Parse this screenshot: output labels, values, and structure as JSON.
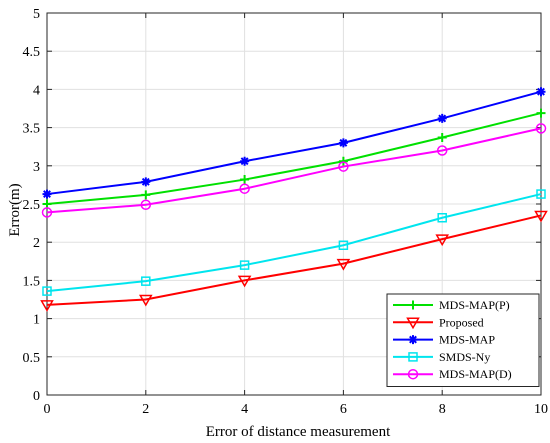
{
  "chart_data": {
    "type": "line",
    "title": "",
    "xlabel": "Error of distance measurement",
    "ylabel": "Error(m)",
    "x": [
      0,
      2,
      4,
      6,
      8,
      10
    ],
    "xlim": [
      0,
      10
    ],
    "ylim": [
      0,
      5
    ],
    "xticks": [
      "0",
      "2",
      "4",
      "6",
      "8",
      "10"
    ],
    "yticks": [
      "0",
      "0.5",
      "1",
      "1.5",
      "2",
      "2.5",
      "3",
      "3.5",
      "4",
      "4.5",
      "5"
    ],
    "grid": true,
    "legend_position": "bottom-right",
    "series": [
      {
        "name": "MDS-MAP(P)",
        "color": "#00e000",
        "marker": "plus",
        "values": [
          2.5,
          2.62,
          2.82,
          3.06,
          3.37,
          3.69
        ]
      },
      {
        "name": "Proposed",
        "color": "#ff0000",
        "marker": "triangle-down",
        "values": [
          1.18,
          1.25,
          1.5,
          1.72,
          2.04,
          2.35
        ]
      },
      {
        "name": "MDS-MAP",
        "color": "#0000ff",
        "marker": "asterisk",
        "values": [
          2.63,
          2.79,
          3.06,
          3.3,
          3.62,
          3.97
        ]
      },
      {
        "name": "SMDS-Ny",
        "color": "#00e5ee",
        "marker": "square",
        "values": [
          1.36,
          1.49,
          1.7,
          1.96,
          2.32,
          2.63
        ]
      },
      {
        "name": "MDS-MAP(D)",
        "color": "#ff00ff",
        "marker": "circle",
        "values": [
          2.39,
          2.49,
          2.7,
          2.99,
          3.2,
          3.49
        ]
      }
    ]
  }
}
